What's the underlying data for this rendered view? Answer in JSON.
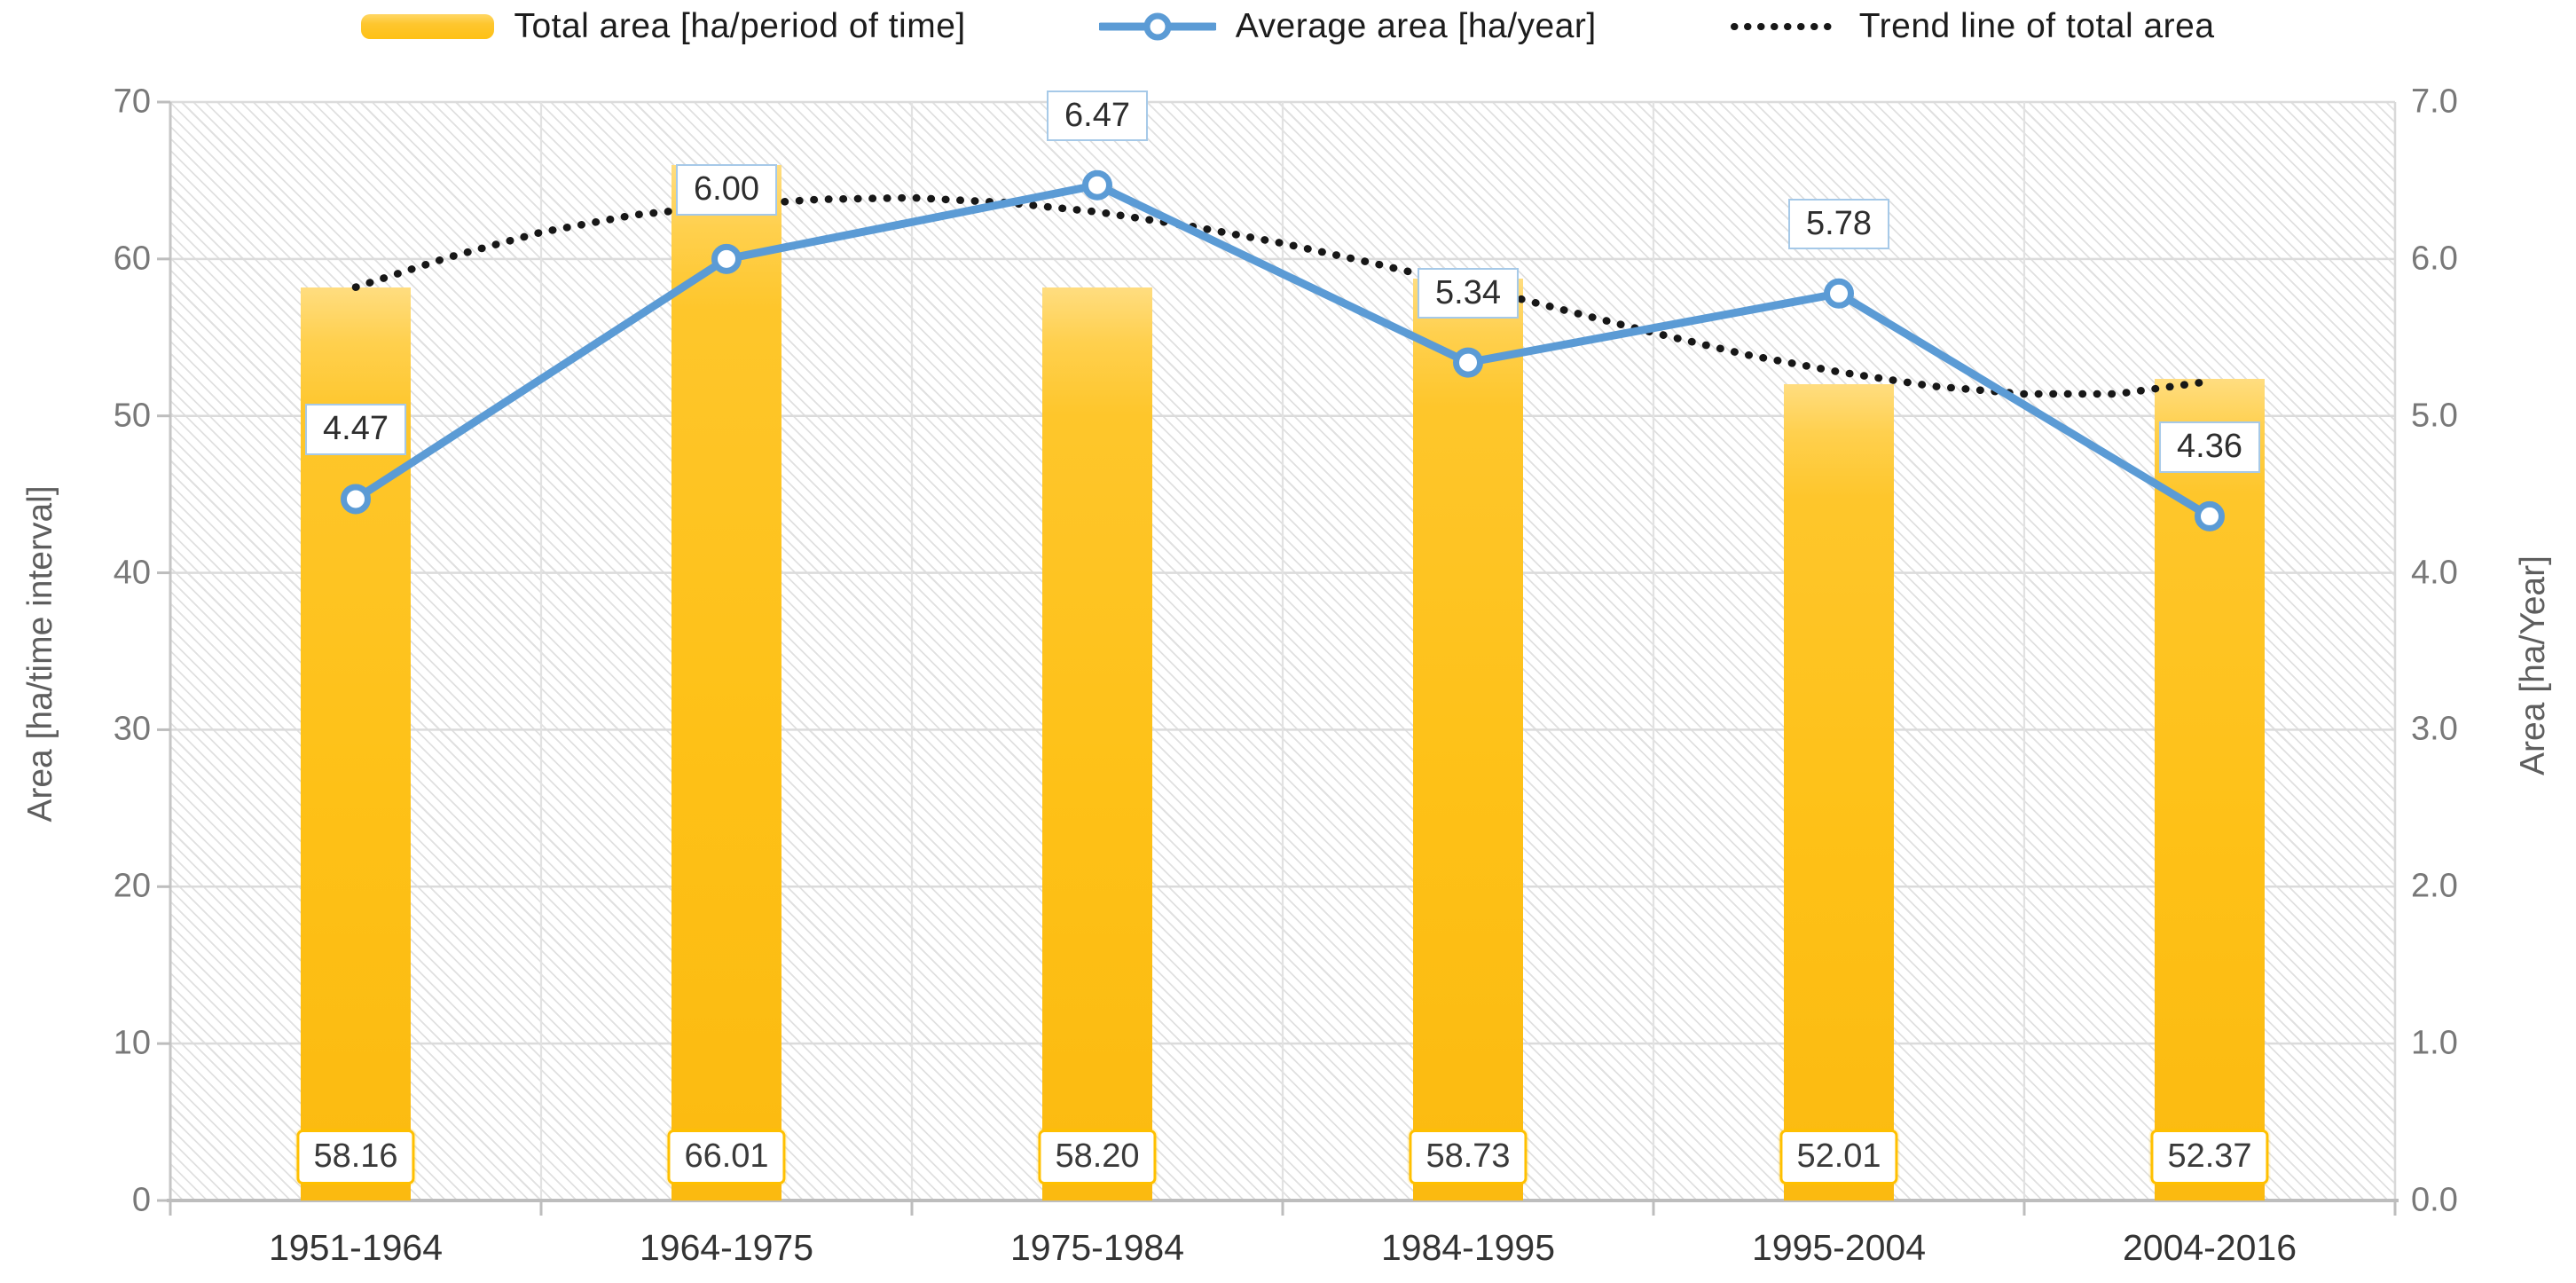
{
  "legend": {
    "items": [
      {
        "label": "Total area [ha/period of time]",
        "swatch": "bar"
      },
      {
        "label": "Average area [ha/year]",
        "swatch": "line-marker"
      },
      {
        "label": "Trend line of total area",
        "swatch": "dotted"
      }
    ]
  },
  "chart_data": {
    "type": "combo-bar-line",
    "categories": [
      "1951-1964",
      "1964-1975",
      "1975-1984",
      "1984-1995",
      "1995-2004",
      "2004-2016"
    ],
    "series": [
      {
        "name": "Total area [ha/period of time]",
        "type": "bar",
        "axis": "left",
        "values": [
          58.16,
          66.01,
          58.2,
          58.73,
          52.01,
          52.37
        ],
        "labels": [
          "58.16",
          "66.01",
          "58.20",
          "58.73",
          "52.01",
          "52.37"
        ]
      },
      {
        "name": "Average area [ha/year]",
        "type": "line",
        "axis": "right",
        "values": [
          4.47,
          6.0,
          6.47,
          5.34,
          5.78,
          4.36
        ],
        "labels": [
          "4.47",
          "6.00",
          "6.47",
          "5.34",
          "5.78",
          "4.36"
        ]
      },
      {
        "name": "Trend line of total area",
        "type": "trend-dotted",
        "axis": "left",
        "samples": [
          [
            1.0,
            58.2
          ],
          [
            1.25,
            60.1
          ],
          [
            1.5,
            61.7
          ],
          [
            1.75,
            62.8
          ],
          [
            2.0,
            63.4
          ],
          [
            2.25,
            63.8
          ],
          [
            2.5,
            63.9
          ],
          [
            2.75,
            63.6
          ],
          [
            3.0,
            63.0
          ],
          [
            3.25,
            62.1
          ],
          [
            3.5,
            61.0
          ],
          [
            3.75,
            59.7
          ],
          [
            4.0,
            58.3
          ],
          [
            4.25,
            56.8
          ],
          [
            4.5,
            55.3
          ],
          [
            4.75,
            53.9
          ],
          [
            5.0,
            52.8
          ],
          [
            5.25,
            51.9
          ],
          [
            5.5,
            51.4
          ],
          [
            5.75,
            51.4
          ],
          [
            6.0,
            52.2
          ]
        ]
      }
    ],
    "left_axis": {
      "title": "Area [ha/time interval]",
      "min": 0,
      "max": 70,
      "step": 10,
      "tick_labels": [
        "0",
        "10",
        "20",
        "30",
        "40",
        "50",
        "60",
        "70"
      ]
    },
    "right_axis": {
      "title": "Area [ha/Year]",
      "min": 0,
      "max": 7,
      "step": 1,
      "tick_labels": [
        "0.0",
        "1.0",
        "2.0",
        "3.0",
        "4.0",
        "5.0",
        "6.0",
        "7.0"
      ]
    },
    "grid": true,
    "legend_position": "top",
    "style": {
      "bar_color": "#FEC115",
      "bar_color_light": "#FFD765",
      "bar_label_border": "#FFC000",
      "line_color": "#5B9BD5",
      "line_label_border": "#A6C9E8",
      "trend_color": "#171717",
      "grid_color": "#DBDBDB",
      "grid_vertical_color": "#E2E2E2",
      "axis_color": "#BDBDBD",
      "tick_text_color": "#787878",
      "category_text_color": "#333333"
    }
  }
}
